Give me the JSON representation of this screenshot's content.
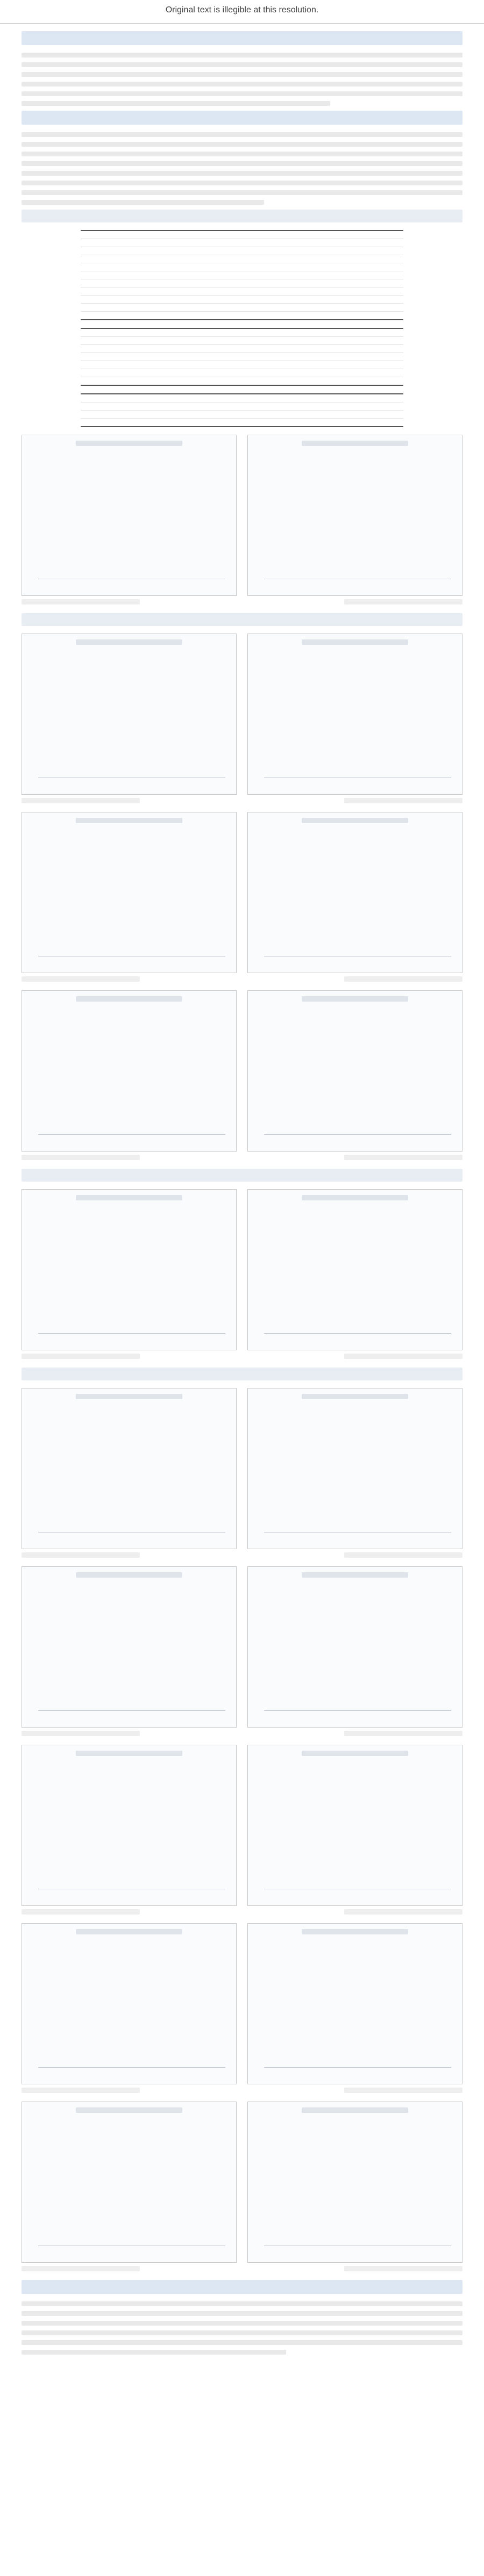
{
  "notice": "Original text is illegible at this resolution."
}
